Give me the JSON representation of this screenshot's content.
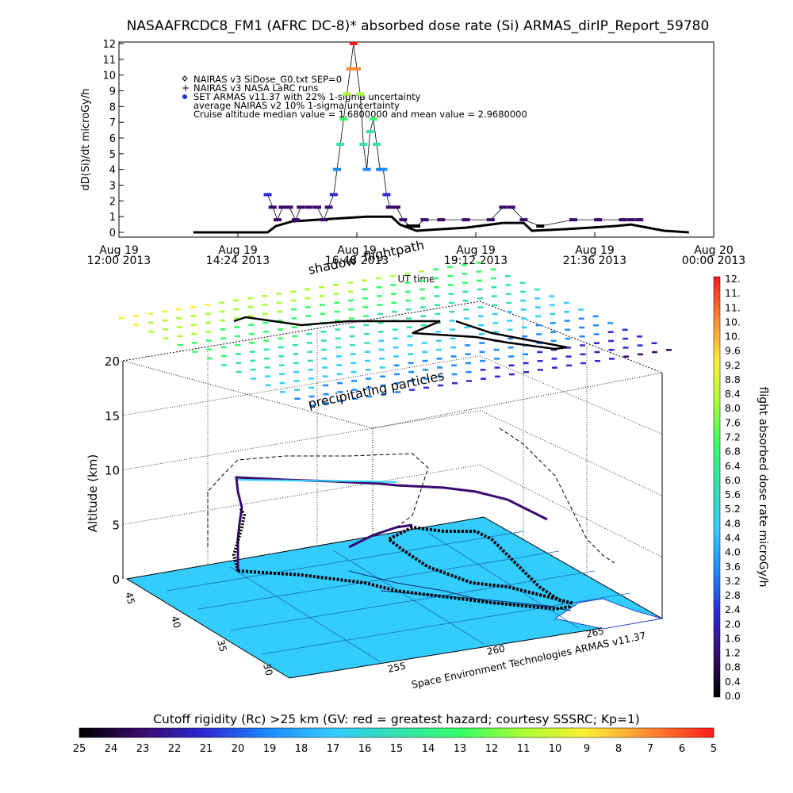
{
  "title": "NASAAFRCDC8_FM1 (AFRC DC-8)* absorbed dose rate (Si) ARMAS_dirIP_Report_59780",
  "top_chart": {
    "ylabel": "dD(Si)/dt microGy/h",
    "xlabel": "UT time",
    "y_ticks": [
      "0",
      "1",
      "2",
      "3",
      "4",
      "5",
      "6",
      "7",
      "8",
      "9",
      "10",
      "11",
      "12"
    ],
    "x_ticks": [
      {
        "day": "Aug 19",
        "time": "12:00 2013"
      },
      {
        "day": "Aug 19",
        "time": "14:24 2013"
      },
      {
        "day": "Aug 19",
        "time": "16:48 2013"
      },
      {
        "day": "Aug 19",
        "time": "19:12 2013"
      },
      {
        "day": "Aug 19",
        "time": "21:36 2013"
      },
      {
        "day": "Aug 20",
        "time": "00:00 2013"
      }
    ],
    "legend": [
      {
        "marker": "diamond",
        "label": "NAIRAS v3 SiDose_G0.txt SEP=0"
      },
      {
        "marker": "plus",
        "label": "NAIRAS v3 NASA LaRC runs"
      },
      {
        "marker": "dot",
        "label": "SET ARMAS v11.37 with 22% 1-sigma uncertainty"
      },
      {
        "marker": "none",
        "label": "average NAIRAS v2 10% 1-sigma uncertainty"
      },
      {
        "marker": "none",
        "label": "Cruise altitude median value = 1.6800000 and mean value = 2.9680000"
      }
    ]
  },
  "chart_data": [
    {
      "type": "scatter",
      "title": "NASAAFRCDC8_FM1 (AFRC DC-8)* absorbed dose rate (Si) ARMAS_dirIP_Report_59780",
      "xlabel": "UT time",
      "ylabel": "dD(Si)/dt microGy/h",
      "xlim": [
        "2013-08-19 12:00",
        "2013-08-20 00:00"
      ],
      "ylim": [
        0,
        12
      ],
      "series": [
        {
          "name": "SET ARMAS v11.37 with 22% 1-sigma uncertainty",
          "x": [
            "2013-08-19 15:00",
            "2013-08-19 15:06",
            "2013-08-19 15:12",
            "2013-08-19 15:18",
            "2013-08-19 15:26",
            "2013-08-19 15:34",
            "2013-08-19 15:40",
            "2013-08-19 15:50",
            "2013-08-19 16:00",
            "2013-08-19 16:08",
            "2013-08-19 16:14",
            "2013-08-19 16:20",
            "2013-08-19 16:24",
            "2013-08-19 16:28",
            "2013-08-19 16:32",
            "2013-08-19 16:36",
            "2013-08-19 16:40",
            "2013-08-19 16:44",
            "2013-08-19 16:48",
            "2013-08-19 16:52",
            "2013-08-19 16:56",
            "2013-08-19 17:00",
            "2013-08-19 17:04",
            "2013-08-19 17:08",
            "2013-08-19 17:12",
            "2013-08-19 17:16",
            "2013-08-19 17:20",
            "2013-08-19 17:24",
            "2013-08-19 17:28",
            "2013-08-19 17:36",
            "2013-08-19 17:44",
            "2013-08-19 17:52",
            "2013-08-19 18:00",
            "2013-08-19 18:10",
            "2013-08-19 18:30",
            "2013-08-19 19:00",
            "2013-08-19 19:30",
            "2013-08-19 19:45",
            "2013-08-19 19:55",
            "2013-08-19 20:10",
            "2013-08-19 20:30",
            "2013-08-19 21:10",
            "2013-08-19 21:40",
            "2013-08-19 22:10",
            "2013-08-19 22:20",
            "2013-08-19 22:30"
          ],
          "y": [
            2.4,
            1.6,
            0.8,
            1.6,
            1.6,
            0.8,
            1.6,
            1.6,
            1.6,
            0.8,
            1.6,
            2.4,
            4.0,
            5.6,
            7.2,
            8.8,
            10.4,
            12.0,
            10.4,
            8.8,
            5.6,
            4.0,
            6.4,
            7.2,
            5.6,
            4.0,
            4.0,
            2.4,
            1.6,
            1.6,
            0.8,
            0.4,
            0.4,
            0.8,
            0.8,
            0.8,
            0.8,
            1.6,
            1.6,
            0.8,
            0.4,
            0.8,
            0.8,
            0.8,
            0.8,
            0.8
          ]
        },
        {
          "name": "NAIRAS v3 SiDose_G0.txt SEP=0",
          "x": [
            "2013-08-19 13:30",
            "2013-08-19 14:30",
            "2013-08-19 15:00",
            "2013-08-19 15:10",
            "2013-08-19 15:30",
            "2013-08-19 16:00",
            "2013-08-19 16:30",
            "2013-08-19 17:00",
            "2013-08-19 17:30",
            "2013-08-19 17:40",
            "2013-08-19 18:00",
            "2013-08-19 18:30",
            "2013-08-19 19:00",
            "2013-08-19 19:30",
            "2013-08-19 19:45",
            "2013-08-19 20:10",
            "2013-08-19 20:20",
            "2013-08-19 21:00",
            "2013-08-19 21:30",
            "2013-08-19 22:00",
            "2013-08-19 22:20",
            "2013-08-19 22:40",
            "2013-08-19 23:00",
            "2013-08-19 23:30"
          ],
          "y": [
            0.0,
            0.0,
            0.0,
            0.4,
            0.7,
            0.8,
            0.9,
            1.0,
            1.0,
            0.5,
            0.1,
            0.2,
            0.3,
            0.5,
            0.6,
            0.6,
            0.1,
            0.2,
            0.3,
            0.4,
            0.5,
            0.3,
            0.1,
            0.0
          ]
        }
      ]
    },
    {
      "type": "scatter",
      "title": "",
      "xlabel": "",
      "ylabel": "Altitude (km)",
      "zlim": [
        0,
        20
      ],
      "z_ticks": [
        "0",
        "5",
        "10",
        "15",
        "20"
      ],
      "lat_ticks": [
        "30",
        "35",
        "40",
        "45"
      ],
      "lon_ticks": [
        "255",
        "260",
        "265"
      ],
      "annotations": [
        "flightpath",
        "shadow",
        "precipitating particles",
        "Space Environment Technologies ARMAS v11.37"
      ]
    }
  ],
  "plot3d": {
    "ylabel": "Altitude (km)",
    "z_ticks": [
      "0",
      "5",
      "10",
      "15",
      "20"
    ],
    "lat_ticks": [
      "30",
      "35",
      "40",
      "45"
    ],
    "lon_ticks": [
      "255",
      "260",
      "265"
    ],
    "flightpath_label": "flightpath",
    "shadow_label": "shadow",
    "particles_label": "precipitating particles",
    "credit": "Space Environment Technologies ARMAS v11.37"
  },
  "colorbar_right": {
    "label": "flight absorbed dose rate microGy/h",
    "ticks": [
      "0.0",
      "0.4",
      "0.8",
      "1.2",
      "1.6",
      "2.0",
      "2.4",
      "2.8",
      "3.2",
      "3.6",
      "4.0",
      "4.4",
      "4.8",
      "5.2",
      "5.6",
      "6.0",
      "6.4",
      "6.8",
      "7.2",
      "7.6",
      "8.0",
      "8.4",
      "8.8",
      "9.2",
      "9.6",
      "10.",
      "10.",
      "11.",
      "11.",
      "12."
    ]
  },
  "colorbar_bottom": {
    "label": "Cutoff rigidity (Rc) >25 km (GV: red = greatest hazard; courtesy SSSRC; Kp=1)",
    "ticks": [
      "25",
      "24",
      "23",
      "22",
      "21",
      "20",
      "19",
      "18",
      "17",
      "16",
      "15",
      "14",
      "13",
      "12",
      "11",
      "10",
      "9",
      "8",
      "7",
      "6",
      "5"
    ]
  },
  "colors": {
    "plane": "#33ccff",
    "land": "#ffffff",
    "track": "#000000"
  }
}
